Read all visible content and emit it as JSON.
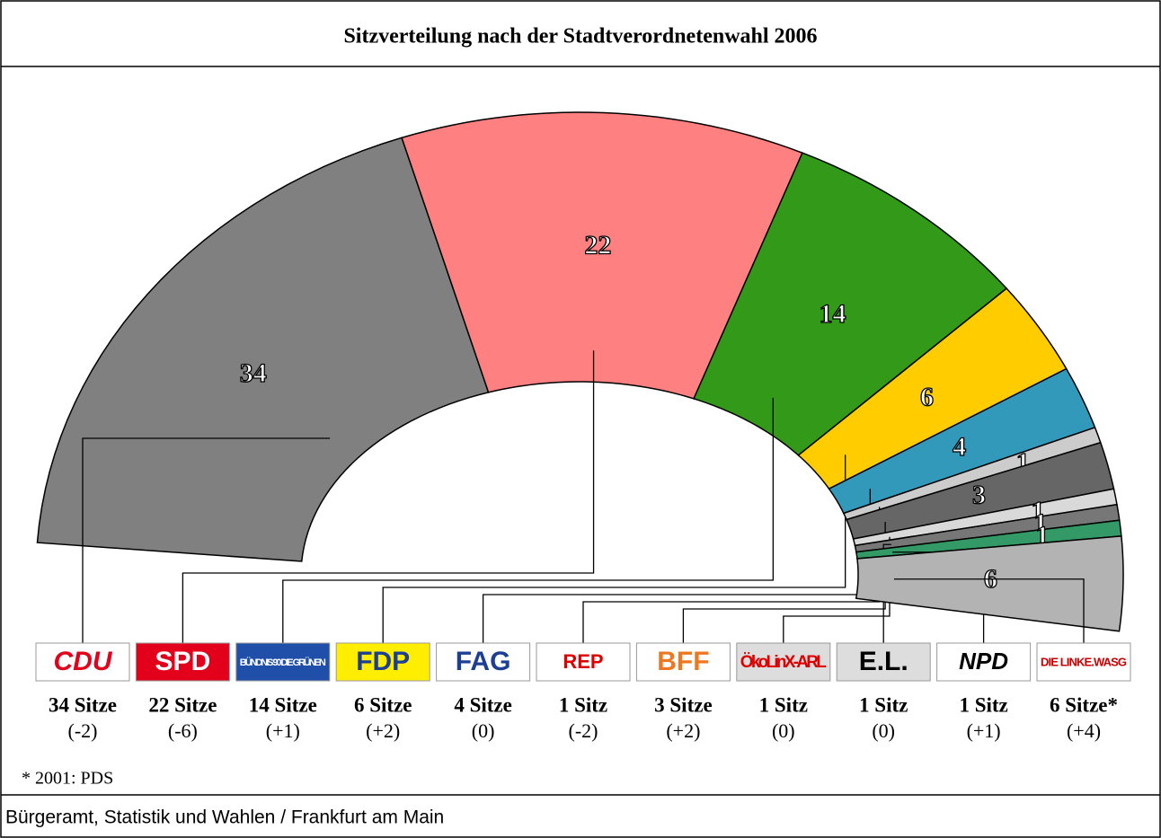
{
  "chart_data": {
    "type": "parliament",
    "title": "Sitzverteilung nach der Stadtverordnetenwahl 2006",
    "categories": [
      "CDU",
      "SPD",
      "BÜNDNIS 90 DIE GRÜNEN",
      "FDP",
      "FAG",
      "REP",
      "BFF",
      "ÖkoLinX-ARL",
      "E.L.",
      "NPD",
      "DIE LINKE.WASG"
    ],
    "values": [
      34,
      22,
      14,
      6,
      4,
      1,
      3,
      1,
      1,
      1,
      6
    ],
    "colors": [
      "#808080",
      "#ff8080",
      "#339919",
      "#ffcc00",
      "#3399bb",
      "#cccccc",
      "#666666",
      "#d9d9d9",
      "#777777",
      "#339966",
      "#b3b3b3"
    ],
    "seat_labels": [
      "34 Sitze",
      "22 Sitze",
      "14 Sitze",
      "6 Sitze",
      "4 Sitze",
      "1 Sitz",
      "3 Sitze",
      "1 Sitz",
      "1 Sitz",
      "1 Sitz",
      "6 Sitze*"
    ],
    "changes": [
      "(-2)",
      "(-6)",
      "(+1)",
      "(+2)",
      "(0)",
      "(-2)",
      "(+2)",
      "(0)",
      "(0)",
      "(+1)",
      "(+4)"
    ],
    "footnote": "* 2001: PDS",
    "source": "Bürgeramt, Statistik und Wahlen / Frankfurt am Main"
  }
}
